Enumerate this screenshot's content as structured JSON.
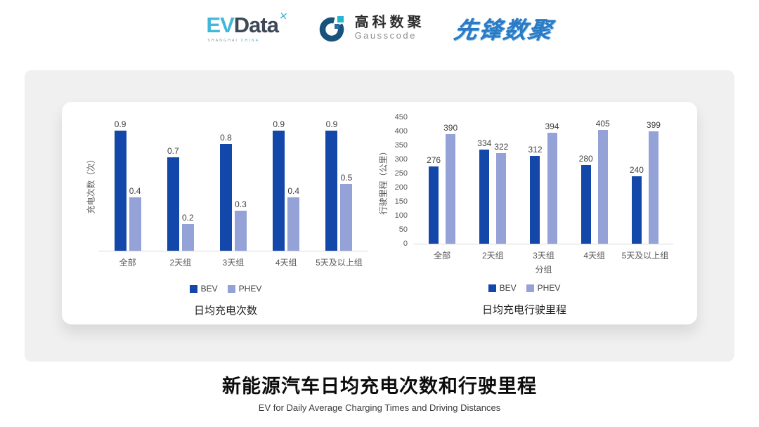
{
  "header": {
    "evdata_logo": {
      "ev": "EV",
      "data": "Data",
      "mark": "✕",
      "sub_shanghai": "SHANGHAI",
      "sub_china": "CHINA"
    },
    "gausscode_logo": {
      "cn": "高科数聚",
      "en": "Gausscode"
    },
    "pioneer_logo": {
      "text": "先锋数聚"
    }
  },
  "colors": {
    "bev": "#1347a9",
    "phev": "#95a2d8",
    "axis_line": "#d9d9d9",
    "tick_text": "#595959",
    "value_text": "#404040",
    "panel_bg": "#f0f0f1",
    "pioneer_blue": "#2b7ac6",
    "evdata_cyan": "#41b7da"
  },
  "chart_data": [
    {
      "type": "bar",
      "title": "日均充电次数",
      "ylabel": "充电次数（次）",
      "xlabel": "",
      "categories": [
        "全部",
        "2天组",
        "3天组",
        "4天组",
        "5天及以上组"
      ],
      "series": [
        {
          "name": "BEV",
          "values": [
            0.9,
            0.7,
            0.8,
            0.9,
            0.9
          ]
        },
        {
          "name": "PHEV",
          "values": [
            0.4,
            0.2,
            0.3,
            0.4,
            0.5
          ]
        }
      ],
      "ylim": [
        0,
        1.0
      ],
      "yticks": [],
      "grid": false,
      "legend": [
        "BEV",
        "PHEV"
      ],
      "legend_position": "bottom",
      "value_labels": true
    },
    {
      "type": "bar",
      "title": "日均充电行驶里程",
      "ylabel": "行驶里程（公里）",
      "xlabel": "分组",
      "categories": [
        "全部",
        "2天组",
        "3天组",
        "4天组",
        "5天及以上组"
      ],
      "series": [
        {
          "name": "BEV",
          "values": [
            276,
            334,
            312,
            280,
            240
          ]
        },
        {
          "name": "PHEV",
          "values": [
            390,
            322,
            394,
            405,
            399
          ]
        }
      ],
      "ylim": [
        0,
        450
      ],
      "yticks": [
        0,
        50,
        100,
        150,
        200,
        250,
        300,
        350,
        400,
        450
      ],
      "grid": false,
      "legend": [
        "BEV",
        "PHEV"
      ],
      "legend_position": "bottom",
      "value_labels": true
    }
  ],
  "footer": {
    "title": "新能源汽车日均充电次数和行驶里程",
    "subtitle": "EV for Daily Average Charging Times and Driving Distances"
  }
}
